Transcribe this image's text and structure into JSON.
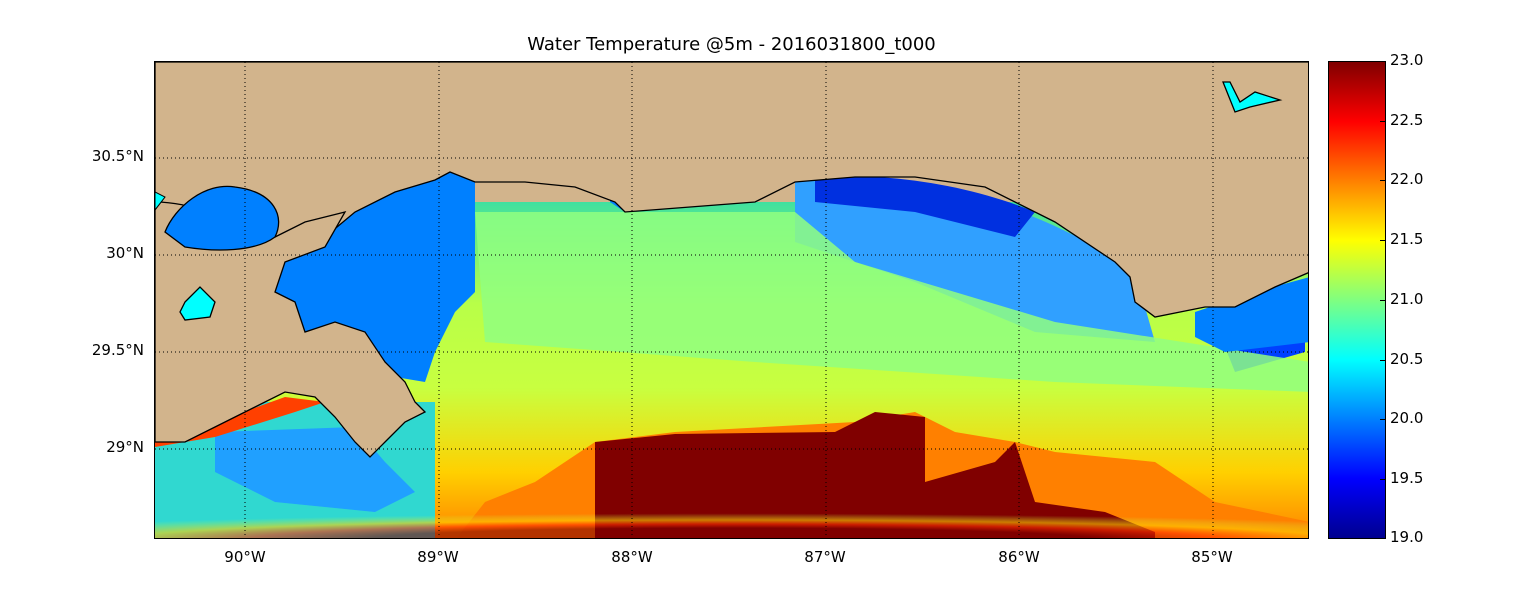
{
  "title": "Water Temperature @5m - 2016031800_t000",
  "x_ticks": [
    "90°W",
    "89°W",
    "88°W",
    "87°W",
    "86°W",
    "85°W"
  ],
  "y_ticks": [
    "30.5°N",
    "30°N",
    "29.5°N",
    "29°N"
  ],
  "colorbar": {
    "ticks": [
      "23.0",
      "22.5",
      "22.0",
      "21.5",
      "21.0",
      "20.5",
      "20.0",
      "19.5",
      "19.0"
    ],
    "min": 19.0,
    "max": 23.0,
    "colormap": "jet"
  },
  "colors": {
    "land": "#d2b48c",
    "masked_water": "#0080ff",
    "lake": "#00ffff",
    "coastline": "#000000"
  }
}
